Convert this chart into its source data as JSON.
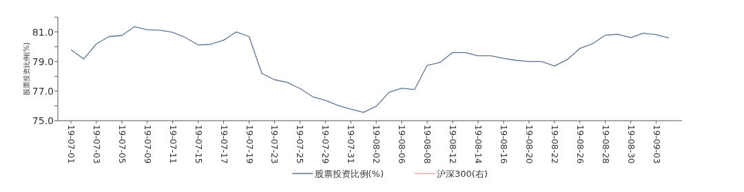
{
  "chart_data": {
    "type": "line",
    "ylabel": "股票投资比例(%)",
    "categories": [
      "19-07-01",
      null,
      "19-07-03",
      null,
      "19-07-05",
      null,
      "19-07-09",
      null,
      "19-07-11",
      null,
      "19-07-15",
      null,
      "19-07-17",
      null,
      "19-07-19",
      null,
      "19-07-23",
      null,
      "19-07-25",
      null,
      "19-07-29",
      null,
      "19-07-31",
      null,
      "19-08-02",
      null,
      "19-08-06",
      null,
      "19-08-08",
      null,
      "19-08-12",
      null,
      "19-08-14",
      null,
      "19-08-16",
      null,
      "19-08-20",
      null,
      "19-08-22",
      null,
      "19-08-26",
      null,
      "19-08-28",
      null,
      "19-08-30",
      null,
      "19-09-03",
      null
    ],
    "series": [
      {
        "name": "股票投资比例(%)",
        "color": "#5b7496",
        "values": [
          79.8,
          79.17,
          80.19,
          80.69,
          80.76,
          81.36,
          81.15,
          81.11,
          80.97,
          80.62,
          80.12,
          80.17,
          80.44,
          81.0,
          80.69,
          78.2,
          77.77,
          77.59,
          77.18,
          76.62,
          76.37,
          76.03,
          75.78,
          75.56,
          75.98,
          76.92,
          77.2,
          77.1,
          78.74,
          78.93,
          79.61,
          79.61,
          79.39,
          79.39,
          79.21,
          79.08,
          79.0,
          79.0,
          78.69,
          79.13,
          79.88,
          80.2,
          80.78,
          80.84,
          80.61,
          80.92,
          80.81,
          80.59
        ]
      },
      {
        "name": "沪深300(右)",
        "color": "#f2a7a7",
        "values": [
          null,
          null,
          null,
          null,
          null,
          null,
          null,
          null,
          null,
          null,
          null,
          null,
          null,
          null,
          null,
          null,
          null,
          null,
          null,
          null,
          null,
          null,
          null,
          null,
          null,
          null,
          null,
          null,
          null,
          null,
          null,
          null,
          null,
          null,
          null,
          null,
          null,
          null,
          null,
          null,
          null,
          null,
          null,
          null,
          null,
          null,
          null,
          null
        ]
      }
    ],
    "ylim": [
      75,
      82
    ],
    "yticks": [
      {
        "value": 75,
        "label": "75.0"
      },
      {
        "value": 76,
        "label": null
      },
      {
        "value": 77,
        "label": "77.0"
      },
      {
        "value": 78,
        "label": null
      },
      {
        "value": 79,
        "label": "79.0"
      },
      {
        "value": 80,
        "label": null
      },
      {
        "value": 81,
        "label": "81.0"
      },
      {
        "value": 82,
        "label": null
      }
    ],
    "grid": false,
    "legend": "bottom",
    "marker": "none",
    "line_style": "solid"
  }
}
